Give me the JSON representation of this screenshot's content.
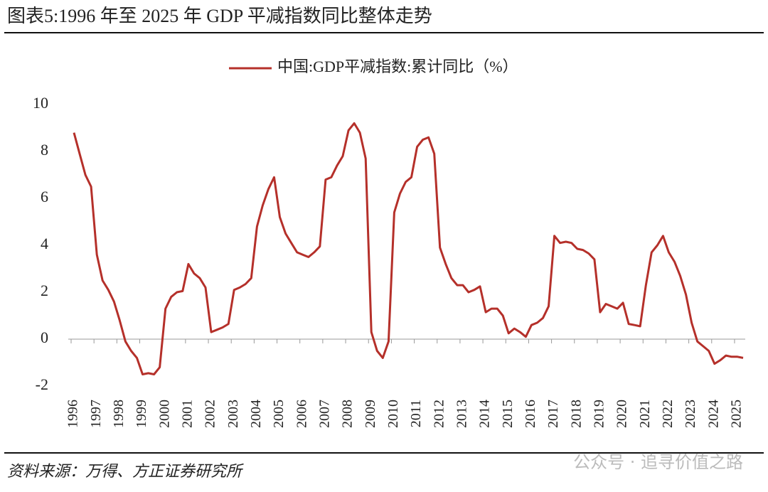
{
  "chart_data": {
    "type": "line",
    "title": "图表5:1996 年至 2025 年 GDP 平减指数同比整体走势",
    "source": "资料来源：万得、方正证券研究所",
    "watermark": "公众号 · 追寻价值之路",
    "categories": [
      "1996",
      null,
      null,
      null,
      "1997",
      null,
      null,
      null,
      "1998",
      null,
      null,
      null,
      "1999",
      null,
      null,
      null,
      "2000",
      null,
      null,
      null,
      "2001",
      null,
      null,
      null,
      "2002",
      null,
      null,
      null,
      "2003",
      null,
      null,
      null,
      "2004",
      null,
      null,
      null,
      "2005",
      null,
      null,
      null,
      "2006",
      null,
      null,
      null,
      "2007",
      null,
      null,
      null,
      "2008",
      null,
      null,
      null,
      "2009",
      null,
      null,
      null,
      "2010",
      null,
      null,
      null,
      "2011",
      null,
      null,
      null,
      "2012",
      null,
      null,
      null,
      "2013",
      null,
      null,
      null,
      "2014",
      null,
      null,
      null,
      "2015",
      null,
      null,
      null,
      "2016",
      null,
      null,
      null,
      "2017",
      null,
      null,
      null,
      "2018",
      null,
      null,
      null,
      "2019",
      null,
      null,
      null,
      "2020",
      null,
      null,
      null,
      "2021",
      null,
      null,
      null,
      "2022",
      null,
      null,
      null,
      "2023",
      null,
      null,
      null,
      "2024",
      null,
      null,
      null,
      "2025",
      null
    ],
    "series": [
      {
        "name": "中国:GDP平减指数:累计同比（%）",
        "color": "#b5302a",
        "values": [
          8.8,
          7.9,
          7.0,
          6.5,
          3.6,
          2.5,
          2.1,
          1.6,
          0.8,
          -0.1,
          -0.5,
          -0.8,
          -1.5,
          -1.45,
          -1.5,
          -1.2,
          1.3,
          1.8,
          2.0,
          2.05,
          3.2,
          2.8,
          2.6,
          2.2,
          0.3,
          0.4,
          0.5,
          0.65,
          2.1,
          2.2,
          2.35,
          2.6,
          4.8,
          5.7,
          6.4,
          6.9,
          5.2,
          4.5,
          4.1,
          3.7,
          3.6,
          3.5,
          3.7,
          3.95,
          6.8,
          6.9,
          7.4,
          7.8,
          8.9,
          9.2,
          8.8,
          7.7,
          0.3,
          -0.5,
          -0.8,
          -0.1,
          5.4,
          6.2,
          6.7,
          6.9,
          8.2,
          8.5,
          8.6,
          7.9,
          3.9,
          3.2,
          2.6,
          2.3,
          2.3,
          2.0,
          2.1,
          2.25,
          1.15,
          1.3,
          1.3,
          1.0,
          0.25,
          0.45,
          0.3,
          0.1,
          0.6,
          0.7,
          0.9,
          1.4,
          4.4,
          4.1,
          4.15,
          4.1,
          3.85,
          3.8,
          3.65,
          3.4,
          1.15,
          1.5,
          1.4,
          1.3,
          1.55,
          0.65,
          0.6,
          0.55,
          2.3,
          3.7,
          4.0,
          4.4,
          3.7,
          3.3,
          2.7,
          1.9,
          0.7,
          -0.1,
          -0.3,
          -0.5,
          -1.05,
          -0.9,
          -0.7,
          -0.75,
          -0.75,
          -0.8
        ]
      }
    ],
    "ylim": [
      -2,
      10
    ],
    "yticks": [
      -2,
      0,
      2,
      4,
      6,
      8,
      10
    ]
  }
}
